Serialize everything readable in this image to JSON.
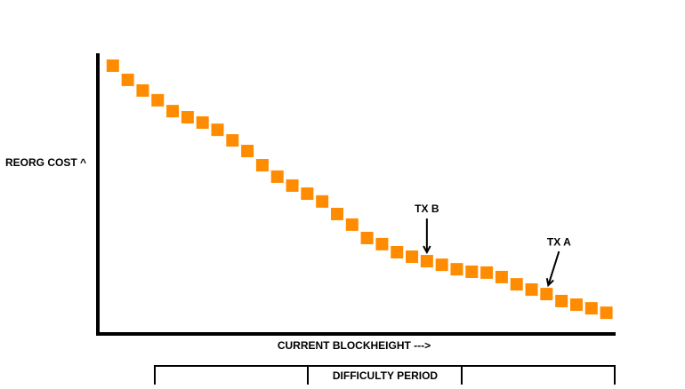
{
  "chart_data": {
    "type": "scatter",
    "ylabel": "REORG COST ^",
    "xlabel": "CURRENT BLOCKHEIGHT --->",
    "color": "#ff8c00",
    "x": [
      1,
      2,
      3,
      4,
      5,
      6,
      7,
      8,
      9,
      10,
      11,
      12,
      13,
      14,
      15,
      16,
      17,
      18,
      19,
      20,
      21,
      22,
      23,
      24,
      25,
      26,
      27,
      28,
      29,
      30,
      31,
      32,
      33,
      34
    ],
    "values": [
      96.2,
      91.1,
      87.3,
      83.8,
      79.9,
      77.7,
      75.8,
      73.2,
      69.4,
      65.6,
      60.5,
      56.4,
      53.2,
      50.3,
      47.5,
      43.0,
      39.2,
      34.4,
      32.2,
      29.3,
      27.7,
      26.1,
      24.8,
      23.2,
      22.3,
      22.0,
      20.4,
      17.8,
      15.9,
      14.3,
      11.8,
      10.5,
      9.2,
      7.6
    ],
    "xlim": [
      0,
      34.5
    ],
    "ylim": [
      0,
      100
    ],
    "annotations": [
      {
        "text": "TX B",
        "x": 22
      },
      {
        "text": "TX A",
        "x": 30
      }
    ],
    "period_label": "DIFFICULTY PERIOD"
  }
}
